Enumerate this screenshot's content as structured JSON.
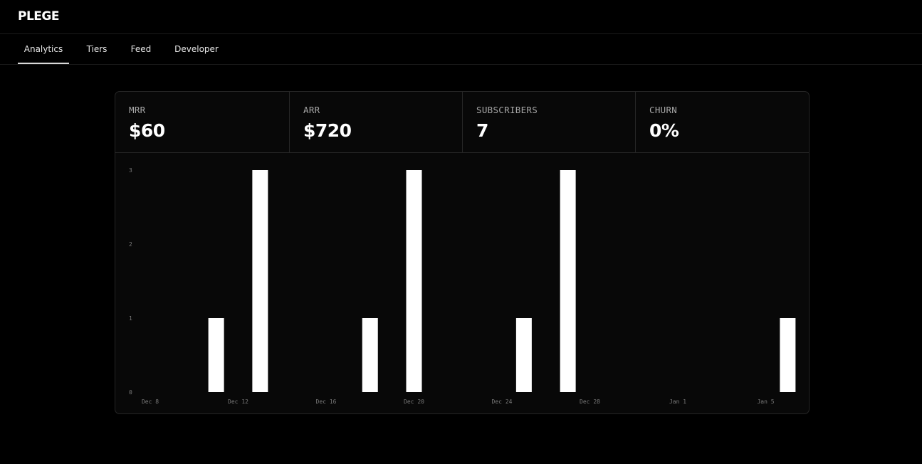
{
  "app": {
    "logo": "PLEGE"
  },
  "nav": {
    "tabs": [
      {
        "label": "Analytics",
        "active": true
      },
      {
        "label": "Tiers",
        "active": false
      },
      {
        "label": "Feed",
        "active": false
      },
      {
        "label": "Developer",
        "active": false
      }
    ]
  },
  "stats": [
    {
      "label": "MRR",
      "value": "$60"
    },
    {
      "label": "ARR",
      "value": "$720"
    },
    {
      "label": "SUBSCRIBERS",
      "value": "7"
    },
    {
      "label": "CHURN",
      "value": "0%"
    }
  ],
  "colors": {
    "background": "#000000",
    "card": "#080808",
    "border": "#262626",
    "bar": "#ffffff",
    "muted_text": "#a7a7a7"
  },
  "chart_data": {
    "type": "bar",
    "title": "",
    "xlabel": "",
    "ylabel": "",
    "ylim": [
      0,
      3
    ],
    "y_ticks": [
      "0",
      "1",
      "2",
      "3"
    ],
    "x_ticks": [
      "Dec 8",
      "Dec 12",
      "Dec 16",
      "Dec 20",
      "Dec 24",
      "Dec 28",
      "Jan 1",
      "Jan 5"
    ],
    "grid": false,
    "categories": [
      "Dec 11",
      "Dec 13",
      "Dec 18",
      "Dec 20",
      "Dec 25",
      "Dec 27",
      "Jan 6"
    ],
    "values": [
      1,
      3,
      1,
      3,
      1,
      3,
      1
    ]
  }
}
